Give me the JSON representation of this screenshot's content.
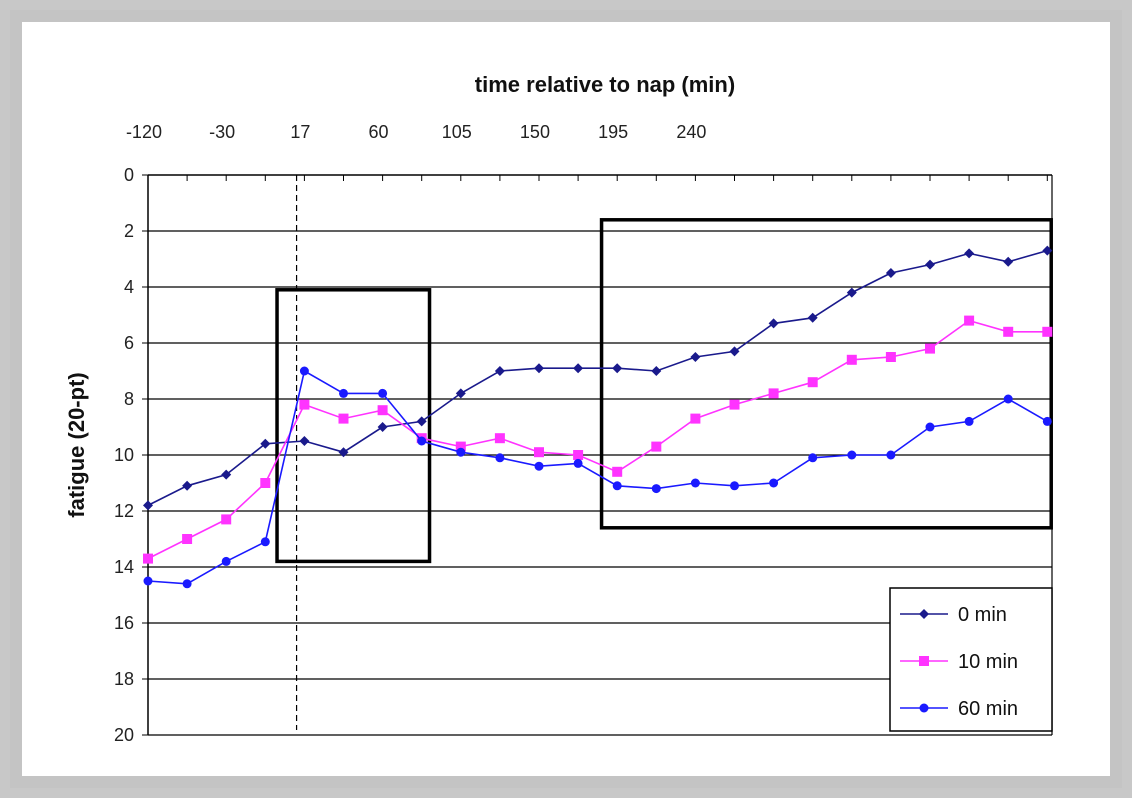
{
  "chart_data": {
    "type": "line",
    "title": "time relative to nap (min)",
    "xlabel": "time relative to nap (min)",
    "ylabel": "fatigue (20-pt)",
    "x_tick_labels": [
      "-120",
      "-30",
      "17",
      "60",
      "105",
      "150",
      "195",
      "240"
    ],
    "y_ticks": [
      0,
      2,
      4,
      6,
      8,
      10,
      12,
      14,
      16,
      18,
      20
    ],
    "ylim": [
      0,
      20
    ],
    "y_inverted": true,
    "x_axis_position": "top",
    "grid": true,
    "legend_position": "bottom-right",
    "nap_marker_index": 3.8,
    "highlight_boxes": [
      {
        "x_from_index": 3.3,
        "x_to_index": 7.2,
        "y_from": 4.1,
        "y_to": 13.8
      },
      {
        "x_from_index": 11.6,
        "x_to_index": 23.1,
        "y_from": 1.6,
        "y_to": 12.6
      }
    ],
    "series": [
      {
        "name": "0 min",
        "color": "#1a1a8c",
        "marker": "diamond",
        "values": [
          11.8,
          11.1,
          10.7,
          9.6,
          9.5,
          9.9,
          9.0,
          8.8,
          7.8,
          7.0,
          6.9,
          6.9,
          6.9,
          7.0,
          6.5,
          6.3,
          5.3,
          5.1,
          4.2,
          3.5,
          3.2,
          2.8,
          3.1,
          2.7
        ]
      },
      {
        "name": "10 min",
        "color": "#ff33ff",
        "marker": "square",
        "values": [
          13.7,
          13.0,
          12.3,
          11.0,
          8.2,
          8.7,
          8.4,
          9.4,
          9.7,
          9.4,
          9.9,
          10.0,
          10.6,
          9.7,
          8.7,
          8.2,
          7.8,
          7.4,
          6.6,
          6.5,
          6.2,
          5.2,
          5.6,
          5.6
        ]
      },
      {
        "name": "60 min",
        "color": "#1a1aff",
        "marker": "circle",
        "values": [
          14.5,
          14.6,
          13.8,
          13.1,
          7.0,
          7.8,
          7.8,
          9.5,
          9.9,
          10.1,
          10.4,
          10.3,
          11.1,
          11.2,
          11.0,
          11.1,
          11.0,
          10.1,
          10.0,
          10.0,
          9.0,
          8.8,
          8.0,
          8.8
        ]
      }
    ]
  }
}
